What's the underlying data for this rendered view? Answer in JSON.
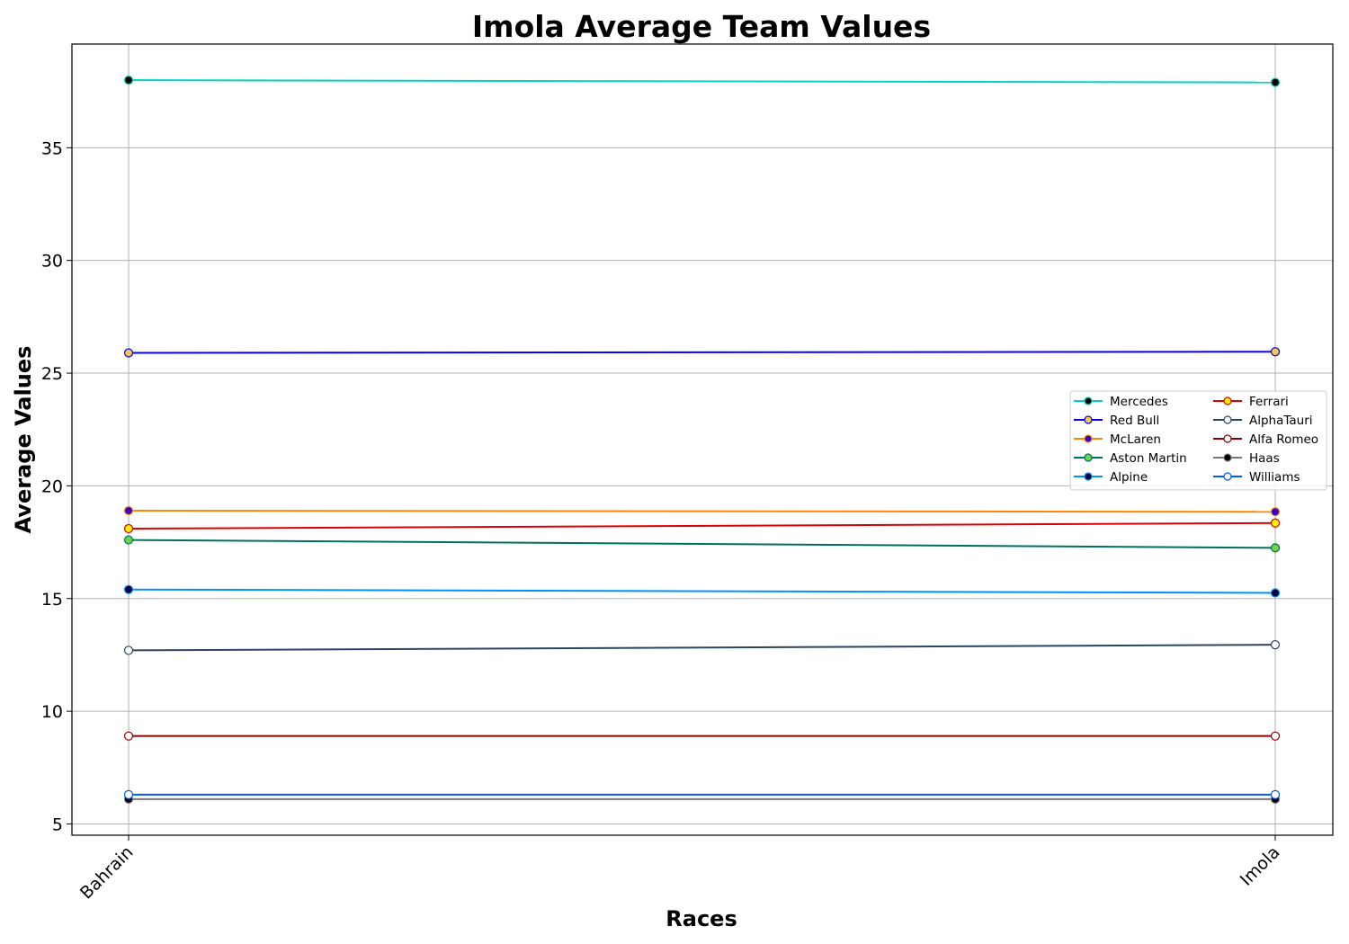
{
  "chart_data": {
    "type": "line",
    "title": "Imola Average Team Values",
    "xlabel": "Races",
    "ylabel": "Average Values",
    "categories": [
      "Bahrain",
      "Imola"
    ],
    "ylim": [
      4.5,
      39.6
    ],
    "yticks": [
      5,
      10,
      15,
      20,
      25,
      30,
      35
    ],
    "grid": true,
    "legend_placement": "center-right",
    "legend_columns": 2,
    "series": [
      {
        "name": "Mercedes",
        "values": [
          38.0,
          37.9
        ],
        "color": "#00d2be",
        "marker_fill": "#000000",
        "marker_edge": "#00d2be"
      },
      {
        "name": "Red Bull",
        "values": [
          25.9,
          25.95
        ],
        "color": "#0600ef",
        "marker_fill": "#f7c948",
        "marker_edge": "#0600ef"
      },
      {
        "name": "McLaren",
        "values": [
          18.9,
          18.85
        ],
        "color": "#ff8700",
        "marker_fill": "#3300cc",
        "marker_edge": "#ff8700"
      },
      {
        "name": "Aston Martin",
        "values": [
          17.6,
          17.25
        ],
        "color": "#006f62",
        "marker_fill": "#6cd346",
        "marker_edge": "#006f62"
      },
      {
        "name": "Alpine",
        "values": [
          15.4,
          15.25
        ],
        "color": "#0090ff",
        "marker_fill": "#00003c",
        "marker_edge": "#0090ff"
      },
      {
        "name": "Ferrari",
        "values": [
          18.1,
          18.35
        ],
        "color": "#dc0000",
        "marker_fill": "#fff200",
        "marker_edge": "#dc0000"
      },
      {
        "name": "AlphaTauri",
        "values": [
          12.7,
          12.95
        ],
        "color": "#2b4562",
        "marker_fill": "#ffffff",
        "marker_edge": "#2b4562"
      },
      {
        "name": "Alfa Romeo",
        "values": [
          8.9,
          8.9
        ],
        "color": "#900000",
        "marker_fill": "#ffffff",
        "marker_edge": "#900000"
      },
      {
        "name": "Haas",
        "values": [
          6.1,
          6.1
        ],
        "color": "#787878",
        "marker_fill": "#000000",
        "marker_edge": "#787878"
      },
      {
        "name": "Williams",
        "values": [
          6.3,
          6.3
        ],
        "color": "#005aff",
        "marker_fill": "#ffffff",
        "marker_edge": "#005aff"
      }
    ]
  }
}
